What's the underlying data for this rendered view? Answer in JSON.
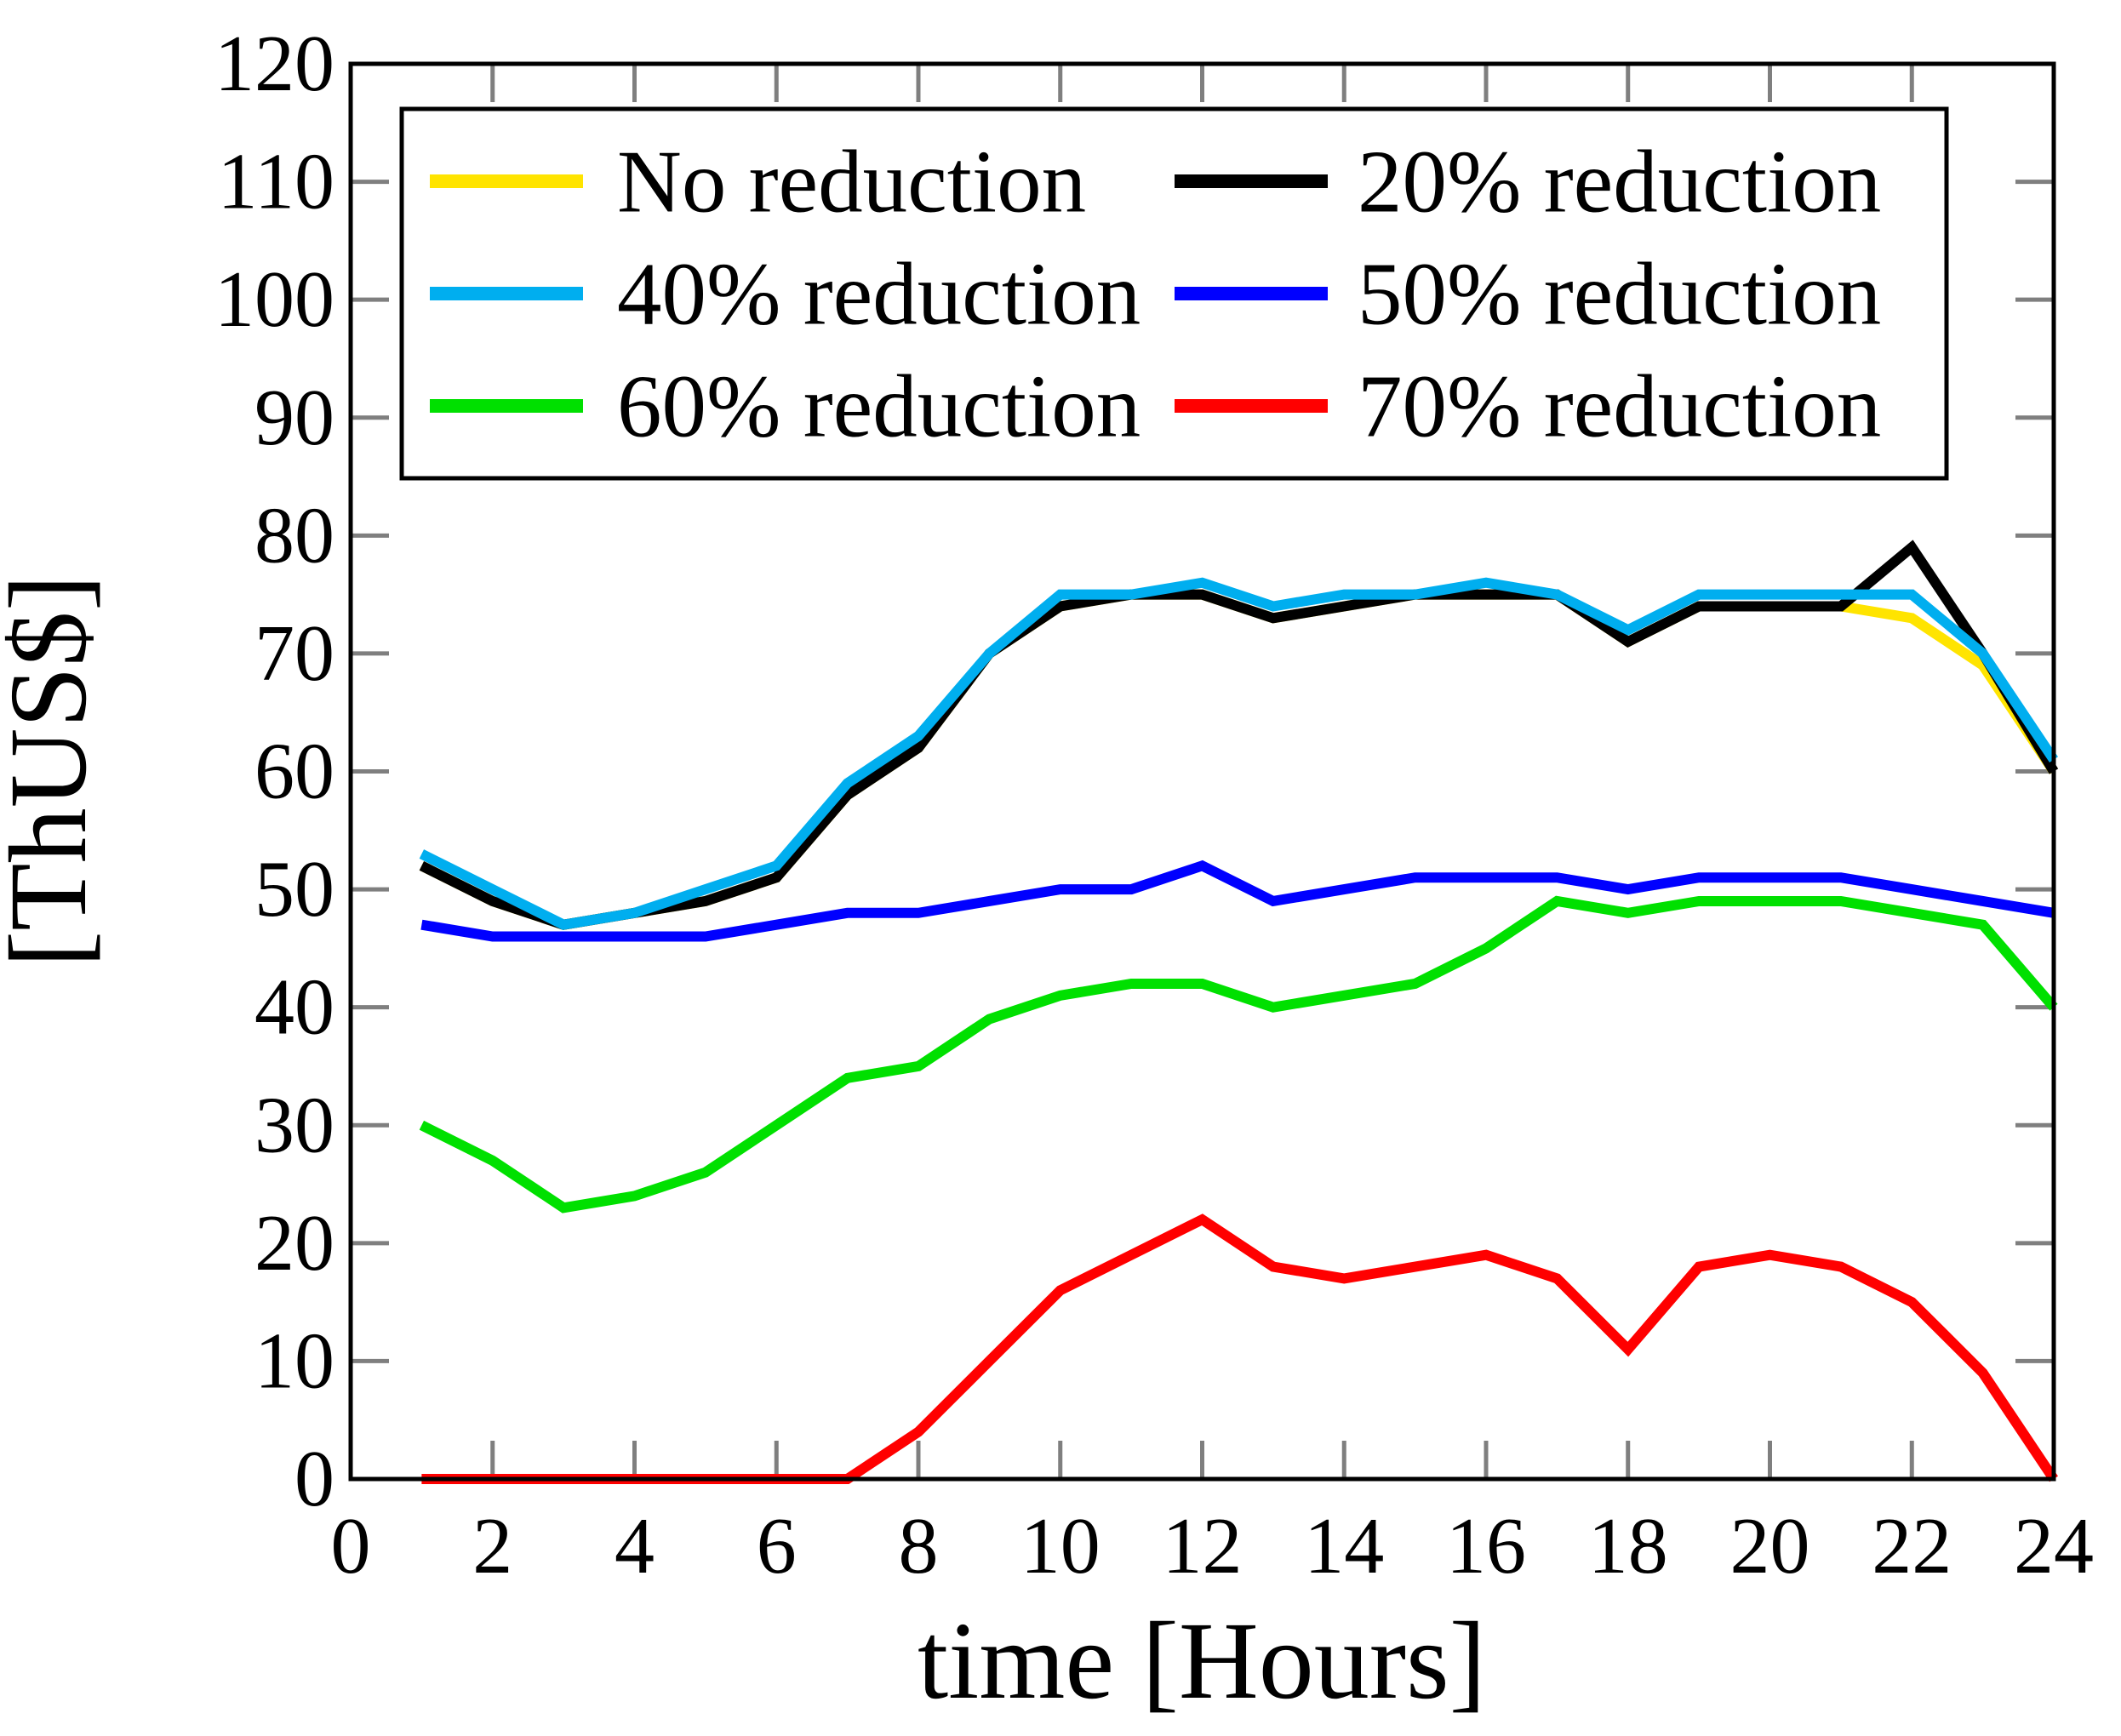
{
  "chart_data": {
    "type": "line",
    "title": "",
    "xlabel": "time [Hours]",
    "ylabel": "[ThUS$]",
    "xlim": [
      0,
      24
    ],
    "ylim": [
      0,
      120
    ],
    "xticks": [
      0,
      2,
      4,
      6,
      8,
      10,
      12,
      14,
      16,
      18,
      20,
      22,
      24
    ],
    "yticks": [
      0,
      10,
      20,
      30,
      40,
      50,
      60,
      70,
      80,
      90,
      100,
      110,
      120
    ],
    "grid": "off",
    "legend_position": "top-inside",
    "legend_columns": 2,
    "axis_frame_color": "#000000",
    "tick_color": "#7f7f7f",
    "x": [
      1,
      2,
      3,
      4,
      5,
      6,
      7,
      8,
      9,
      10,
      11,
      12,
      13,
      14,
      15,
      16,
      17,
      18,
      19,
      20,
      21,
      22,
      23,
      24
    ],
    "series": [
      {
        "name": "No reduction",
        "color": "#ffe400",
        "values": [
          52,
          49,
          47,
          48,
          49,
          51,
          58,
          62,
          70,
          74,
          75,
          75,
          73,
          74,
          75,
          75,
          75,
          71,
          74,
          74,
          74,
          73,
          69,
          60
        ]
      },
      {
        "name": "20% reduction",
        "color": "#000000",
        "values": [
          52,
          49,
          47,
          48,
          49,
          51,
          58,
          62,
          70,
          74,
          75,
          75,
          73,
          74,
          75,
          75,
          75,
          71,
          74,
          74,
          74,
          79,
          70,
          60
        ]
      },
      {
        "name": "40% reduction",
        "color": "#00aeef",
        "values": [
          53,
          50,
          47,
          48,
          50,
          52,
          59,
          63,
          70,
          75,
          75,
          76,
          74,
          75,
          75,
          76,
          75,
          72,
          75,
          75,
          75,
          75,
          70,
          61
        ]
      },
      {
        "name": "50% reduction",
        "color": "#0000ff",
        "values": [
          47,
          46,
          46,
          46,
          46,
          47,
          48,
          48,
          49,
          50,
          50,
          52,
          49,
          50,
          51,
          51,
          51,
          50,
          51,
          51,
          51,
          50,
          49,
          48
        ]
      },
      {
        "name": "60% reduction",
        "color": "#00e000",
        "values": [
          30,
          27,
          23,
          24,
          26,
          30,
          34,
          35,
          39,
          41,
          42,
          42,
          40,
          41,
          42,
          45,
          49,
          48,
          49,
          49,
          49,
          48,
          47,
          40
        ]
      },
      {
        "name": "70% reduction",
        "color": "#ff0000",
        "values": [
          0,
          0,
          0,
          0,
          0,
          0,
          0,
          4,
          10,
          16,
          19,
          22,
          18,
          17,
          18,
          19,
          17,
          11,
          18,
          19,
          18,
          15,
          9,
          0
        ]
      }
    ]
  }
}
